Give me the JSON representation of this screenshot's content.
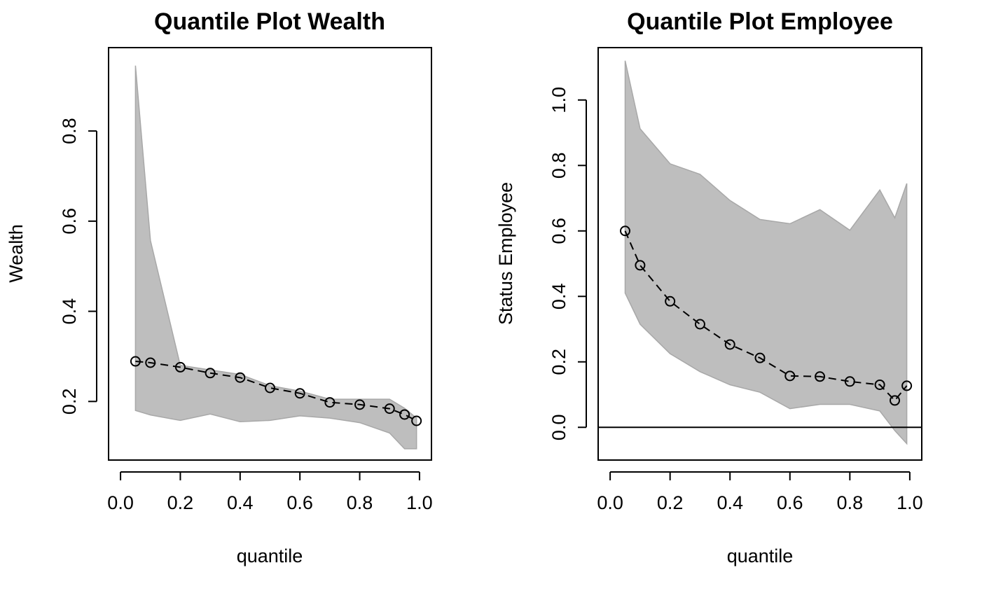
{
  "chart_data": [
    {
      "type": "line",
      "title": "Quantile Plot Wealth",
      "xlabel": "quantile",
      "ylabel": "Wealth",
      "xlim": [
        -0.04,
        1.04
      ],
      "ylim": [
        0.07,
        0.985
      ],
      "x_ticks": [
        "0.0",
        "0.2",
        "0.4",
        "0.6",
        "0.8",
        "1.0"
      ],
      "y_ticks": [
        "0.2",
        "0.4",
        "0.6",
        "0.8"
      ],
      "grid": false,
      "colors": {
        "band": "#bebebe",
        "band_edge": "#a8a8a8",
        "line": "#000000"
      },
      "x": [
        0.05,
        0.1,
        0.2,
        0.3,
        0.4,
        0.5,
        0.6,
        0.7,
        0.8,
        0.9,
        0.95,
        0.99
      ],
      "series": [
        {
          "values": [
            0.289,
            0.286,
            0.276,
            0.263,
            0.253,
            0.23,
            0.218,
            0.198,
            0.193,
            0.184,
            0.171,
            0.157
          ]
        }
      ],
      "band": {
        "upper": [
          0.945,
          0.557,
          0.28,
          0.27,
          0.26,
          0.235,
          0.223,
          0.205,
          0.205,
          0.205,
          0.185,
          0.163
        ],
        "lower": [
          0.18,
          0.17,
          0.158,
          0.172,
          0.155,
          0.158,
          0.168,
          0.163,
          0.153,
          0.13,
          0.095,
          0.095
        ]
      },
      "hline": null
    },
    {
      "type": "line",
      "title": "Quantile Plot Employee",
      "xlabel": "quantile",
      "ylabel": "Status Employee",
      "xlim": [
        -0.04,
        1.04
      ],
      "ylim": [
        -0.1,
        1.16
      ],
      "x_ticks": [
        "0.0",
        "0.2",
        "0.4",
        "0.6",
        "0.8",
        "1.0"
      ],
      "y_ticks": [
        "0.0",
        "0.2",
        "0.4",
        "0.6",
        "0.8",
        "1.0"
      ],
      "grid": false,
      "colors": {
        "band": "#bebebe",
        "band_edge": "#a8a8a8",
        "line": "#000000"
      },
      "x": [
        0.05,
        0.1,
        0.2,
        0.3,
        0.4,
        0.5,
        0.6,
        0.7,
        0.8,
        0.9,
        0.95,
        0.99
      ],
      "series": [
        {
          "values": [
            0.6,
            0.495,
            0.385,
            0.315,
            0.253,
            0.212,
            0.157,
            0.155,
            0.14,
            0.13,
            0.082,
            0.127
          ]
        }
      ],
      "band": {
        "upper": [
          1.12,
          0.912,
          0.805,
          0.773,
          0.693,
          0.635,
          0.622,
          0.665,
          0.602,
          0.725,
          0.64,
          0.745
        ],
        "lower": [
          0.41,
          0.315,
          0.225,
          0.17,
          0.13,
          0.107,
          0.057,
          0.07,
          0.07,
          0.05,
          -0.01,
          -0.05
        ]
      },
      "hline": 0
    }
  ]
}
